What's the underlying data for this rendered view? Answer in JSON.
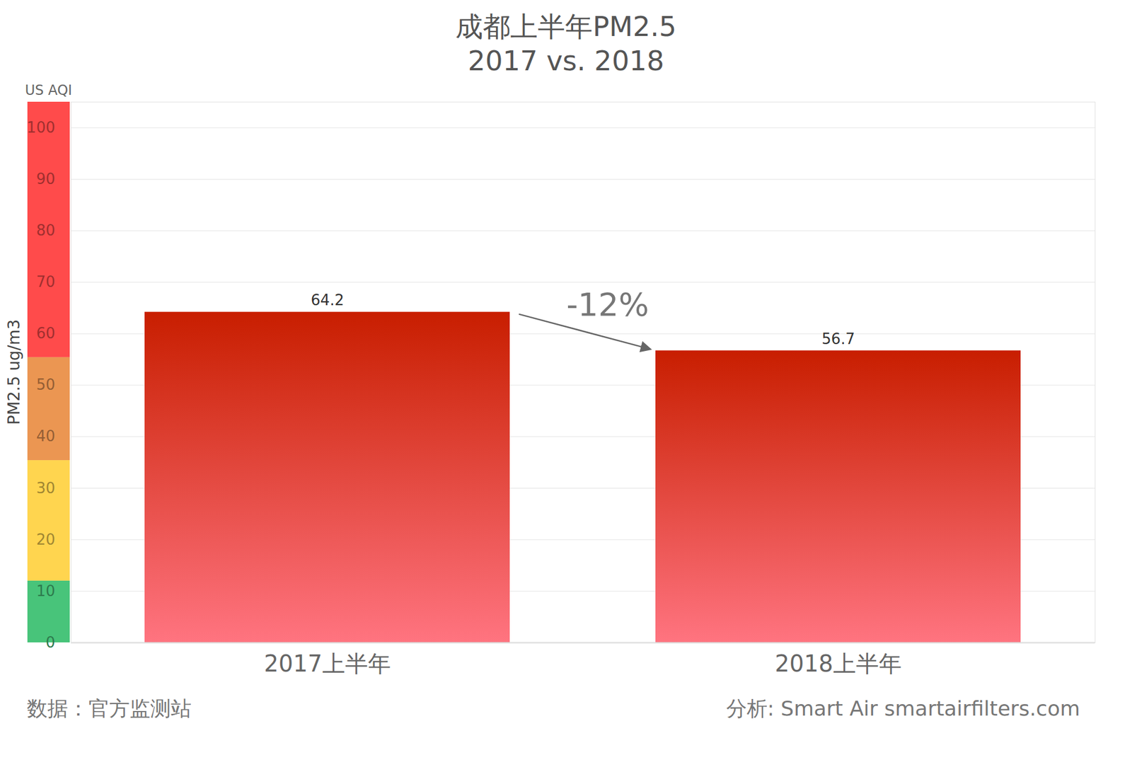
{
  "chart_data": {
    "type": "bar",
    "title": "成都上半年PM2.5",
    "subtitle": "2017 vs. 2018",
    "categories": [
      "2017上半年",
      "2018上半年"
    ],
    "values": [
      64.2,
      56.7
    ],
    "color": "#c81e00",
    "ylim": [
      0,
      105
    ],
    "yticks": [
      0,
      10,
      20,
      30,
      40,
      50,
      60,
      70,
      80,
      90,
      100
    ],
    "grid": true,
    "data_labels": true,
    "y_label": "PM2.5 ug/m3",
    "annotation": "-12%",
    "aqi_label": "US AQI",
    "aqi_bands": [
      {
        "from": 0,
        "to": 12,
        "color": "#48c47a"
      },
      {
        "from": 12,
        "to": 35.4,
        "color": "#ffd54f"
      },
      {
        "from": 35.4,
        "to": 55.4,
        "color": "#eb9652"
      },
      {
        "from": 55.4,
        "to": 105,
        "color": "#ff4b4b"
      }
    ],
    "source": "数据：官方监测站",
    "credit": "分析: Smart Air smartairfilters.com"
  }
}
